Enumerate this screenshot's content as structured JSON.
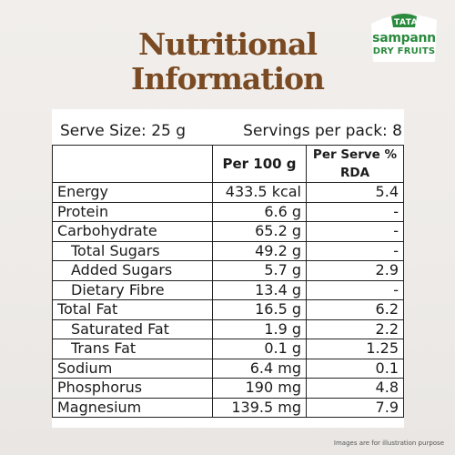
{
  "brand": {
    "tata": "TATA",
    "name": "sampann",
    "sub": "DRY FRUITS",
    "color": "#2a8a3e"
  },
  "title_line1": "Nutritional",
  "title_line2": "Information",
  "serve_size": "Serve Size: 25 g",
  "servings_per_pack": "Servings per pack: 8",
  "columns": [
    "",
    "Per 100 g",
    "Per Serve % RDA"
  ],
  "rows": [
    {
      "name": "Energy",
      "per100": "433.5 kcal",
      "rda": "5.4",
      "indent": false
    },
    {
      "name": "Protein",
      "per100": "6.6 g",
      "rda": "-",
      "indent": false
    },
    {
      "name": "Carbohydrate",
      "per100": "65.2 g",
      "rda": "-",
      "indent": false
    },
    {
      "name": "Total Sugars",
      "per100": "49.2 g",
      "rda": "-",
      "indent": true
    },
    {
      "name": "Added Sugars",
      "per100": "5.7 g",
      "rda": "2.9",
      "indent": true
    },
    {
      "name": "Dietary Fibre",
      "per100": "13.4 g",
      "rda": "-",
      "indent": true
    },
    {
      "name": "Total Fat",
      "per100": "16.5 g",
      "rda": "6.2",
      "indent": false
    },
    {
      "name": "Saturated Fat",
      "per100": "1.9 g",
      "rda": "2.2",
      "indent": true
    },
    {
      "name": "Trans Fat",
      "per100": "0.1 g",
      "rda": "1.25",
      "indent": true
    },
    {
      "name": "Sodium",
      "per100": "6.4 mg",
      "rda": "0.1",
      "indent": false
    },
    {
      "name": "Phosphorus",
      "per100": "190 mg",
      "rda": "4.8",
      "indent": false
    },
    {
      "name": "Magnesium",
      "per100": "139.5 mg",
      "rda": "7.9",
      "indent": false
    }
  ],
  "footnote": "Images are for illustration purpose",
  "title_color": "#7a4a23"
}
